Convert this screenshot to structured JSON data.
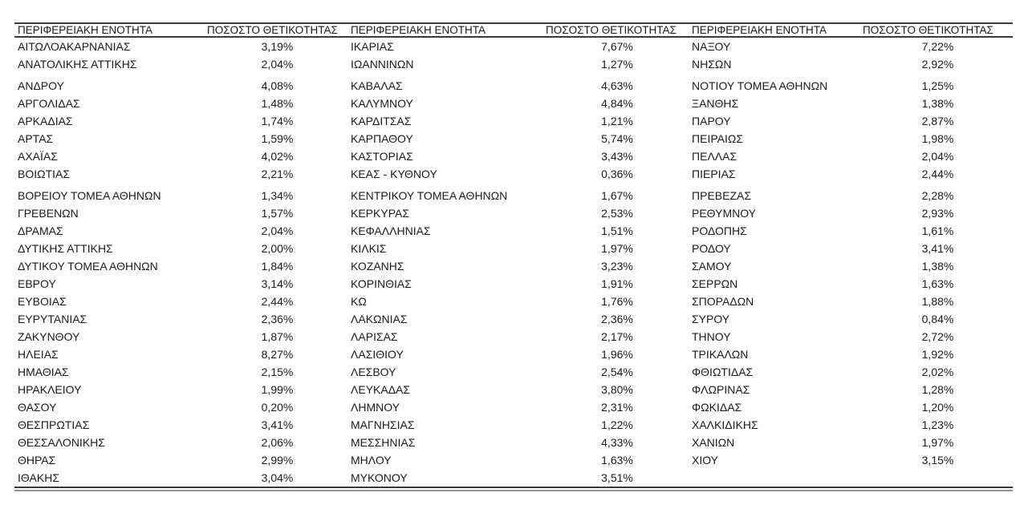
{
  "page": {
    "background": "#ffffff",
    "text_color": "#1a1a1a",
    "rule_color": "#3c3c3c",
    "rule_secondary_color": "#949494"
  },
  "table": {
    "headers": {
      "region": "ΠΕΡΙΦΕΡΕΙΑΚΗ ΕΝΟΤΗΤΑ",
      "positivity": "ΠΟΣΟΣΤΟ ΘΕΤΙΚΟΤΗΤΑΣ"
    },
    "columns": [
      {
        "rows": [
          {
            "region": "ΑΙΤΩΛΟΑΚΑΡΝΑΝΙΑΣ",
            "pct": "3,19%"
          },
          {
            "region": "ΑΝΑΤΟΛΙΚΗΣ ΑΤΤΙΚΗΣ",
            "pct": "2,04%"
          },
          {
            "region": "ΑΝΔΡΟΥ",
            "pct": "4,08%"
          },
          {
            "region": "ΑΡΓΟΛΙΔΑΣ",
            "pct": "1,48%"
          },
          {
            "region": "ΑΡΚΑΔΙΑΣ",
            "pct": "1,74%"
          },
          {
            "region": "ΑΡΤΑΣ",
            "pct": "1,59%"
          },
          {
            "region": "ΑΧΑΪΑΣ",
            "pct": "4,02%"
          },
          {
            "region": "ΒΟΙΩΤΙΑΣ",
            "pct": "2,21%"
          },
          {
            "region": "ΒΟΡΕΙΟΥ ΤΟΜΕΑ ΑΘΗΝΩΝ",
            "pct": "1,34%"
          },
          {
            "region": "ΓΡΕΒΕΝΩΝ",
            "pct": "1,57%"
          },
          {
            "region": "ΔΡΑΜΑΣ",
            "pct": "2,04%"
          },
          {
            "region": "ΔΥΤΙΚΗΣ ΑΤΤΙΚΗΣ",
            "pct": "2,00%"
          },
          {
            "region": "ΔΥΤΙΚΟΥ ΤΟΜΕΑ ΑΘΗΝΩΝ",
            "pct": "1,84%"
          },
          {
            "region": "ΕΒΡΟΥ",
            "pct": "3,14%"
          },
          {
            "region": "ΕΥΒΟΙΑΣ",
            "pct": "2,44%"
          },
          {
            "region": "ΕΥΡΥΤΑΝΙΑΣ",
            "pct": "2,36%"
          },
          {
            "region": "ΖΑΚΥΝΘΟΥ",
            "pct": "1,87%"
          },
          {
            "region": "ΗΛΕΙΑΣ",
            "pct": "8,27%"
          },
          {
            "region": "ΗΜΑΘΙΑΣ",
            "pct": "2,15%"
          },
          {
            "region": "ΗΡΑΚΛΕΙΟΥ",
            "pct": "1,99%"
          },
          {
            "region": "ΘΑΣΟΥ",
            "pct": "0,20%"
          },
          {
            "region": "ΘΕΣΠΡΩΤΙΑΣ",
            "pct": "3,41%"
          },
          {
            "region": "ΘΕΣΣΑΛΟΝΙΚΗΣ",
            "pct": "2,06%"
          },
          {
            "region": "ΘΗΡΑΣ",
            "pct": "2,99%"
          },
          {
            "region": "ΙΘΑΚΗΣ",
            "pct": "3,04%"
          }
        ]
      },
      {
        "rows": [
          {
            "region": "ΙΚΑΡΙΑΣ",
            "pct": "7,67%"
          },
          {
            "region": "ΙΩΑΝΝΙΝΩΝ",
            "pct": "1,27%"
          },
          {
            "region": "ΚΑΒΑΛΑΣ",
            "pct": "4,63%"
          },
          {
            "region": "ΚΑΛΥΜΝΟΥ",
            "pct": "4,84%"
          },
          {
            "region": "ΚΑΡΔΙΤΣΑΣ",
            "pct": "1,21%"
          },
          {
            "region": "ΚΑΡΠΑΘΟΥ",
            "pct": "5,74%"
          },
          {
            "region": "ΚΑΣΤΟΡΙΑΣ",
            "pct": "3,43%"
          },
          {
            "region": "ΚΕΑΣ - ΚΥΘΝΟΥ",
            "pct": "0,36%"
          },
          {
            "region": "ΚΕΝΤΡΙΚΟΥ ΤΟΜΕΑ ΑΘΗΝΩΝ",
            "pct": "1,67%"
          },
          {
            "region": "ΚΕΡΚΥΡΑΣ",
            "pct": "2,53%"
          },
          {
            "region": "ΚΕΦΑΛΛΗΝΙΑΣ",
            "pct": "1,51%"
          },
          {
            "region": "ΚΙΛΚΙΣ",
            "pct": "1,97%"
          },
          {
            "region": "ΚΟΖΑΝΗΣ",
            "pct": "3,23%"
          },
          {
            "region": "ΚΟΡΙΝΘΙΑΣ",
            "pct": "1,91%"
          },
          {
            "region": "ΚΩ",
            "pct": "1,76%"
          },
          {
            "region": "ΛΑΚΩΝΙΑΣ",
            "pct": "2,36%"
          },
          {
            "region": "ΛΑΡΙΣΑΣ",
            "pct": "2,17%"
          },
          {
            "region": "ΛΑΣΙΘΙΟΥ",
            "pct": "1,96%"
          },
          {
            "region": "ΛΕΣΒΟΥ",
            "pct": "2,54%"
          },
          {
            "region": "ΛΕΥΚΑΔΑΣ",
            "pct": "3,80%"
          },
          {
            "region": "ΛΗΜΝΟΥ",
            "pct": "2,31%"
          },
          {
            "region": "ΜΑΓΝΗΣΙΑΣ",
            "pct": "1,22%"
          },
          {
            "region": "ΜΕΣΣΗΝΙΑΣ",
            "pct": "4,33%"
          },
          {
            "region": "ΜΗΛΟΥ",
            "pct": "1,63%"
          },
          {
            "region": "ΜΥΚΟΝΟΥ",
            "pct": "3,51%"
          }
        ]
      },
      {
        "rows": [
          {
            "region": "ΝΑΞΟΥ",
            "pct": "7,22%"
          },
          {
            "region": "ΝΗΣΩΝ",
            "pct": "2,92%"
          },
          {
            "region": "ΝΟΤΙΟΥ ΤΟΜΕΑ ΑΘΗΝΩΝ",
            "pct": "1,25%"
          },
          {
            "region": "ΞΑΝΘΗΣ",
            "pct": "1,38%"
          },
          {
            "region": "ΠΑΡΟΥ",
            "pct": "2,87%"
          },
          {
            "region": "ΠΕΙΡΑΙΩΣ",
            "pct": "1,98%"
          },
          {
            "region": "ΠΕΛΛΑΣ",
            "pct": "2,04%"
          },
          {
            "region": "ΠΙΕΡΙΑΣ",
            "pct": "2,44%"
          },
          {
            "region": "ΠΡΕΒΕΖΑΣ",
            "pct": "2,28%"
          },
          {
            "region": "ΡΕΘΥΜΝΟΥ",
            "pct": "2,93%"
          },
          {
            "region": "ΡΟΔΟΠΗΣ",
            "pct": "1,61%"
          },
          {
            "region": "ΡΟΔΟΥ",
            "pct": "3,41%"
          },
          {
            "region": "ΣΑΜΟΥ",
            "pct": "1,38%"
          },
          {
            "region": "ΣΕΡΡΩΝ",
            "pct": "1,63%"
          },
          {
            "region": "ΣΠΟΡΑΔΩΝ",
            "pct": "1,88%"
          },
          {
            "region": "ΣΥΡΟΥ",
            "pct": "0,84%"
          },
          {
            "region": "ΤΗΝΟΥ",
            "pct": "2,72%"
          },
          {
            "region": "ΤΡΙΚΑΛΩΝ",
            "pct": "1,92%"
          },
          {
            "region": "ΦΘΙΩΤΙΔΑΣ",
            "pct": "2,02%"
          },
          {
            "region": "ΦΛΩΡΙΝΑΣ",
            "pct": "1,28%"
          },
          {
            "region": "ΦΩΚΙΔΑΣ",
            "pct": "1,20%"
          },
          {
            "region": "ΧΑΛΚΙΔΙΚΗΣ",
            "pct": "1,23%"
          },
          {
            "region": "ΧΑΝΙΩΝ",
            "pct": "1,97%"
          },
          {
            "region": "ΧΙΟΥ",
            "pct": "3,15%"
          }
        ]
      }
    ]
  }
}
